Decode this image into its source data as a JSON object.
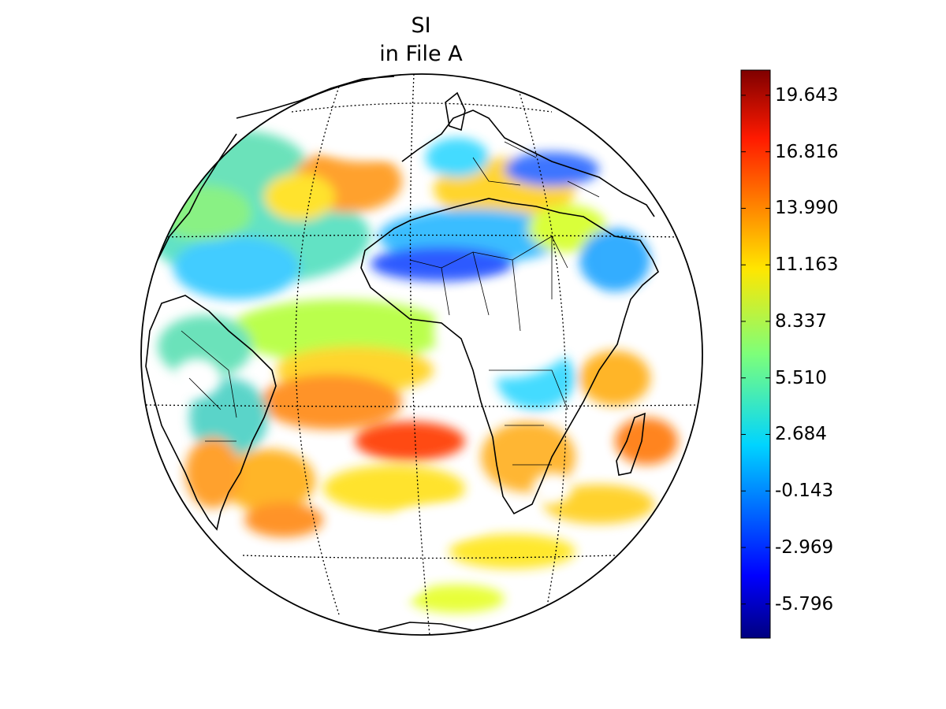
{
  "title_line1": "SI",
  "title_line2": "in File A",
  "colorbar": {
    "colormap": "jet",
    "vmin": -7.5,
    "vmax": 20.9,
    "ticks": [
      19.643,
      16.816,
      13.99,
      11.163,
      8.337,
      5.51,
      2.684,
      -0.143,
      -2.969,
      -5.796
    ],
    "tick_labels": [
      "19.643",
      "16.816",
      "13.990",
      "11.163",
      "8.337",
      "5.510",
      "2.684",
      "-0.143",
      "-2.969",
      "-5.796"
    ]
  },
  "map": {
    "projection": "orthographic",
    "graticule": "dotted",
    "features": [
      "coastlines",
      "country-borders"
    ]
  },
  "colors": {
    "outline": "#000000",
    "background": "#ffffff",
    "land_outline": "#000000"
  }
}
